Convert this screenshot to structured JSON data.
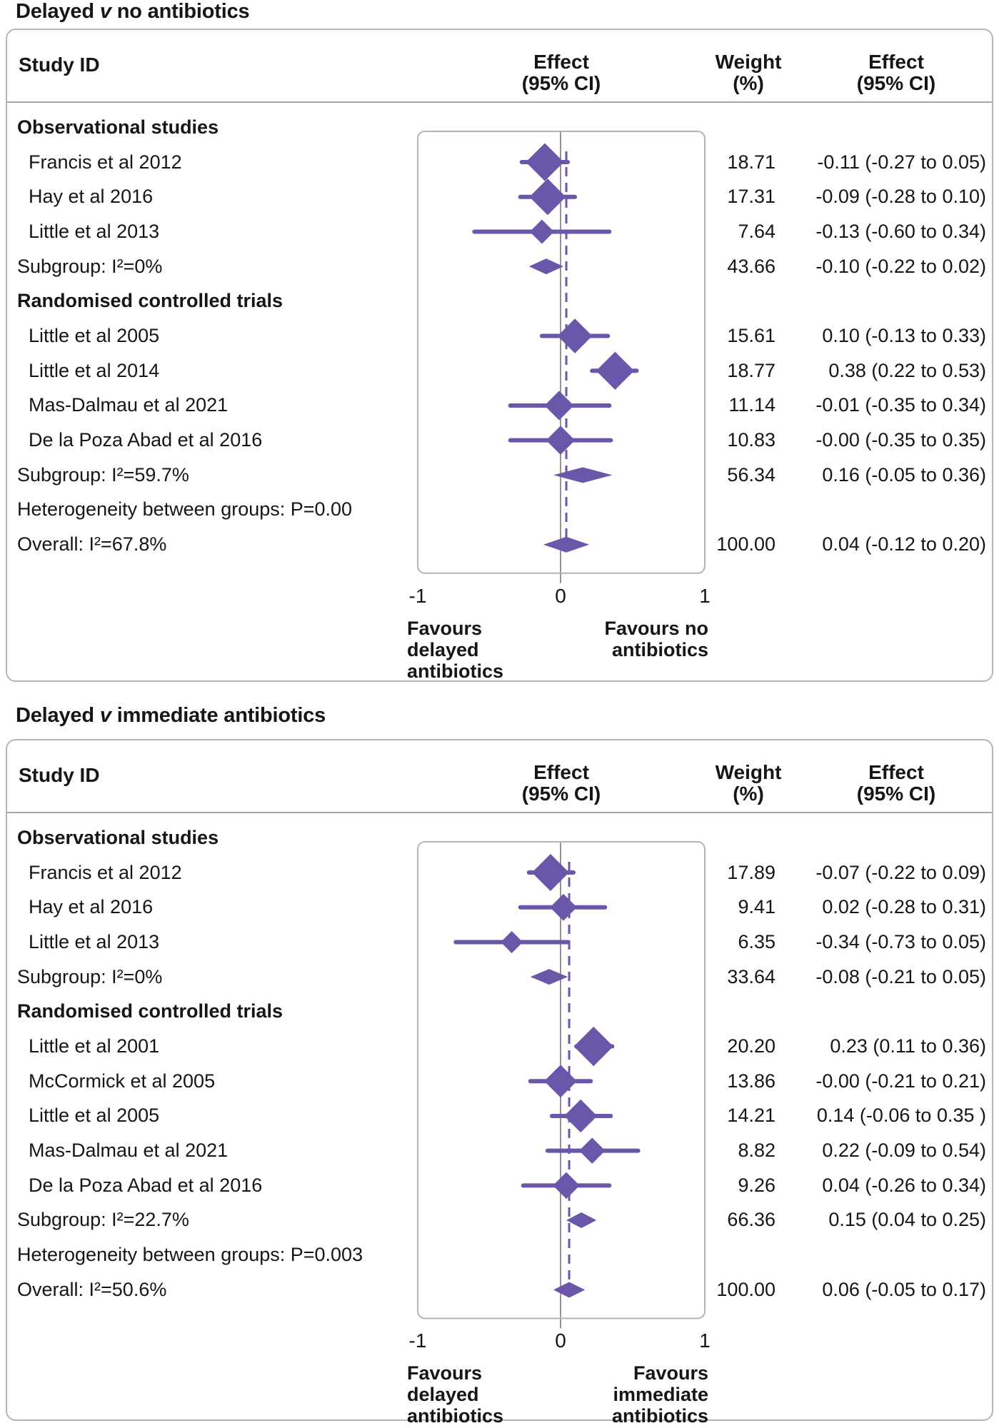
{
  "colors": {
    "accent_purple": "#6a57aa",
    "zero_line_gray": "#949494",
    "box_border_gray": "#b4b4b4",
    "text": "#161616"
  },
  "chart_data": [
    {
      "type": "scatter",
      "subtype": "forest-plot",
      "title": {
        "lead": "Delayed",
        "versus": "v",
        "rest": "no antibiotics"
      },
      "columns": {
        "study_id": "Study ID",
        "effect_plot_line1": "Effect",
        "effect_plot_line2": "(95% CI)",
        "weight_line1": "Weight",
        "weight_line2": "(%)",
        "effect_ci_line1": "Effect",
        "effect_ci_line2": "(95% CI)"
      },
      "axis": {
        "min": -1,
        "max": 1,
        "ticks": [
          "-1",
          "0",
          "1"
        ]
      },
      "overall_effect_line": 0.04,
      "favours_left_lines": [
        "Favours",
        "delayed",
        "antibiotics"
      ],
      "favours_right_lines": [
        "Favours no",
        "antibiotics"
      ],
      "rows": [
        {
          "kind": "section",
          "label": "Observational studies"
        },
        {
          "kind": "study",
          "label": "Francis et al 2012",
          "weight": "18.71",
          "weight_num": 18.71,
          "effect": -0.11,
          "lo": -0.27,
          "hi": 0.05,
          "ci_text": "-0.11 (-0.27 to 0.05)"
        },
        {
          "kind": "study",
          "label": "Hay et al 2016",
          "weight": "17.31",
          "weight_num": 17.31,
          "effect": -0.09,
          "lo": -0.28,
          "hi": 0.1,
          "ci_text": "-0.09 (-0.28 to 0.10)"
        },
        {
          "kind": "study",
          "label": "Little et al 2013",
          "weight": "7.64",
          "weight_num": 7.64,
          "effect": -0.13,
          "lo": -0.6,
          "hi": 0.34,
          "ci_text": "-0.13 (-0.60 to 0.34)"
        },
        {
          "kind": "summary",
          "label": "Subgroup: I²=0%",
          "weight": "43.66",
          "effect": -0.1,
          "lo": -0.22,
          "hi": 0.02,
          "ci_text": "-0.10 (-0.22 to 0.02)"
        },
        {
          "kind": "section",
          "label": "Randomised controlled trials"
        },
        {
          "kind": "study",
          "label": "Little et al 2005",
          "weight": "15.61",
          "weight_num": 15.61,
          "effect": 0.1,
          "lo": -0.13,
          "hi": 0.33,
          "ci_text": "0.10 (-0.13 to 0.33)"
        },
        {
          "kind": "study",
          "label": "Little et al 2014",
          "weight": "18.77",
          "weight_num": 18.77,
          "effect": 0.38,
          "lo": 0.22,
          "hi": 0.53,
          "ci_text": "0.38 (0.22 to 0.53)"
        },
        {
          "kind": "study",
          "label": "Mas-Dalmau et al 2021",
          "weight": "11.14",
          "weight_num": 11.14,
          "effect": -0.01,
          "lo": -0.35,
          "hi": 0.34,
          "ci_text": "-0.01 (-0.35 to 0.34)"
        },
        {
          "kind": "study",
          "label": "De la Poza Abad et al 2016",
          "weight": "10.83",
          "weight_num": 10.83,
          "effect": -0.0,
          "lo": -0.35,
          "hi": 0.35,
          "ci_text": "-0.00 (-0.35 to 0.35)"
        },
        {
          "kind": "summary",
          "label": "Subgroup: I²=59.7%",
          "weight": "56.34",
          "effect": 0.16,
          "lo": -0.05,
          "hi": 0.36,
          "ci_text": "0.16 (-0.05 to 0.36)"
        },
        {
          "kind": "text",
          "label": "Heterogeneity between groups: P=0.00"
        },
        {
          "kind": "summary",
          "label": "Overall: I²=67.8%",
          "weight": "100.00",
          "effect": 0.04,
          "lo": -0.12,
          "hi": 0.2,
          "ci_text": "0.04 (-0.12 to 0.20)"
        }
      ]
    },
    {
      "type": "scatter",
      "subtype": "forest-plot",
      "title": {
        "lead": "Delayed",
        "versus": "v",
        "rest": "immediate antibiotics"
      },
      "columns": {
        "study_id": "Study ID",
        "effect_plot_line1": "Effect",
        "effect_plot_line2": "(95% CI)",
        "weight_line1": "Weight",
        "weight_line2": "(%)",
        "effect_ci_line1": "Effect",
        "effect_ci_line2": "(95% CI)"
      },
      "axis": {
        "min": -1,
        "max": 1,
        "ticks": [
          "-1",
          "0",
          "1"
        ]
      },
      "overall_effect_line": 0.06,
      "favours_left_lines": [
        "Favours",
        "delayed",
        "antibiotics"
      ],
      "favours_right_lines": [
        "Favours",
        "immediate",
        "antibiotics"
      ],
      "rows": [
        {
          "kind": "section",
          "label": "Observational studies"
        },
        {
          "kind": "study",
          "label": "Francis et al 2012",
          "weight": "17.89",
          "weight_num": 17.89,
          "effect": -0.07,
          "lo": -0.22,
          "hi": 0.09,
          "ci_text": "-0.07 (-0.22 to 0.09)"
        },
        {
          "kind": "study",
          "label": "Hay et al 2016",
          "weight": "9.41",
          "weight_num": 9.41,
          "effect": 0.02,
          "lo": -0.28,
          "hi": 0.31,
          "ci_text": "0.02 (-0.28 to 0.31)"
        },
        {
          "kind": "study",
          "label": "Little et al 2013",
          "weight": "6.35",
          "weight_num": 6.35,
          "effect": -0.34,
          "lo": -0.73,
          "hi": 0.05,
          "ci_text": "-0.34 (-0.73 to 0.05)"
        },
        {
          "kind": "summary",
          "label": "Subgroup: I²=0%",
          "weight": "33.64",
          "effect": -0.08,
          "lo": -0.21,
          "hi": 0.05,
          "ci_text": "-0.08 (-0.21 to 0.05)"
        },
        {
          "kind": "section",
          "label": "Randomised controlled trials"
        },
        {
          "kind": "study",
          "label": "Little et al 2001",
          "weight": "20.20",
          "weight_num": 20.2,
          "effect": 0.23,
          "lo": 0.11,
          "hi": 0.36,
          "ci_text": "0.23 (0.11 to 0.36)"
        },
        {
          "kind": "study",
          "label": "McCormick et al 2005",
          "weight": "13.86",
          "weight_num": 13.86,
          "effect": -0.0,
          "lo": -0.21,
          "hi": 0.21,
          "ci_text": "-0.00 (-0.21 to 0.21)"
        },
        {
          "kind": "study",
          "label": "Little et al 2005",
          "weight": "14.21",
          "weight_num": 14.21,
          "effect": 0.14,
          "lo": -0.06,
          "hi": 0.35,
          "ci_text": "0.14 (-0.06 to 0.35 )"
        },
        {
          "kind": "study",
          "label": "Mas-Dalmau et al 2021",
          "weight": "8.82",
          "weight_num": 8.82,
          "effect": 0.22,
          "lo": -0.09,
          "hi": 0.54,
          "ci_text": "0.22 (-0.09 to 0.54)"
        },
        {
          "kind": "study",
          "label": "De la Poza Abad et al 2016",
          "weight": "9.26",
          "weight_num": 9.26,
          "effect": 0.04,
          "lo": -0.26,
          "hi": 0.34,
          "ci_text": "0.04 (-0.26 to 0.34)"
        },
        {
          "kind": "summary",
          "label": "Subgroup: I²=22.7%",
          "weight": "66.36",
          "effect": 0.15,
          "lo": 0.04,
          "hi": 0.25,
          "ci_text": "0.15 (0.04 to 0.25)"
        },
        {
          "kind": "text",
          "label": "Heterogeneity between groups: P=0.003"
        },
        {
          "kind": "summary",
          "label": "Overall: I²=50.6%",
          "weight": "100.00",
          "effect": 0.06,
          "lo": -0.05,
          "hi": 0.17,
          "ci_text": "0.06 (-0.05 to 0.17)"
        }
      ]
    }
  ]
}
